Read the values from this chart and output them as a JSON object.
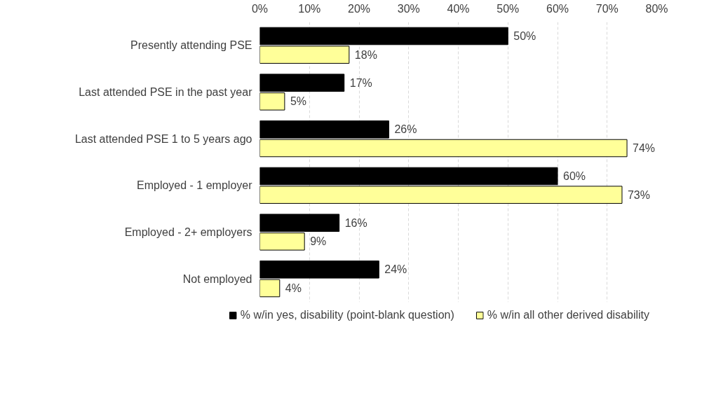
{
  "chart_data": {
    "type": "bar",
    "orientation": "horizontal",
    "categories": [
      "Presently attending PSE",
      "Last attended PSE in the past year",
      "Last attended PSE 1 to 5 years ago",
      "Employed - 1 employer",
      "Employed - 2+ employers",
      "Not employed"
    ],
    "series": [
      {
        "name": "% w/in yes, disability (point-blank question)",
        "color": "#000000",
        "values": [
          50,
          17,
          26,
          60,
          16,
          24
        ],
        "value_labels": [
          "50%",
          "17%",
          "26%",
          "60%",
          "16%",
          "24%"
        ]
      },
      {
        "name": "% w/in all other derived disability",
        "color": "#ffff99",
        "values": [
          18,
          5,
          74,
          73,
          9,
          4
        ],
        "value_labels": [
          "18%",
          "5%",
          "74%",
          "73%",
          "9%",
          "4%"
        ]
      }
    ],
    "xlim": [
      0,
      80
    ],
    "xticks": [
      {
        "value": 0,
        "label": "0%"
      },
      {
        "value": 10,
        "label": "10%"
      },
      {
        "value": 20,
        "label": "20%"
      },
      {
        "value": 30,
        "label": "30%"
      },
      {
        "value": 40,
        "label": "40%"
      },
      {
        "value": 50,
        "label": "50%"
      },
      {
        "value": 60,
        "label": "60%"
      },
      {
        "value": 70,
        "label": "70%"
      },
      {
        "value": 80,
        "label": "80%"
      }
    ],
    "grid": "x",
    "legend": "bottom"
  }
}
